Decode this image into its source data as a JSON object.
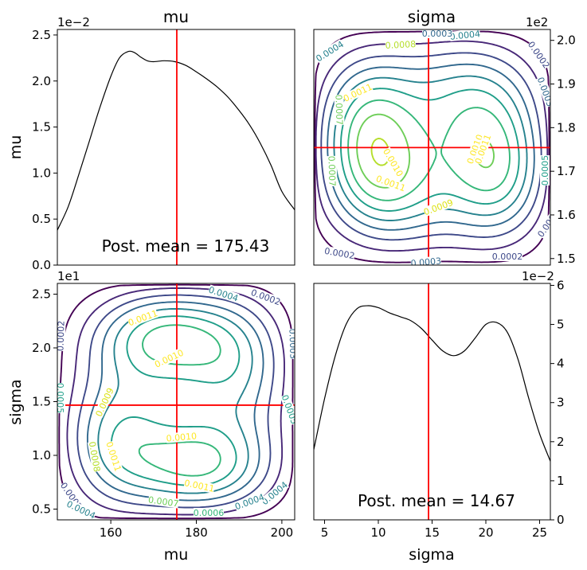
{
  "chart_data": [
    {
      "id": "mu_marginal",
      "type": "line",
      "title": "mu",
      "xlabel": "",
      "ylabel": "mu",
      "xlim": [
        147.5,
        203
      ],
      "ylim": [
        0,
        0.0256
      ],
      "y_scale_label": "1e−2",
      "yticks": [
        0,
        0.005,
        0.01,
        0.015,
        0.02,
        0.025
      ],
      "ytick_labels": [
        "0.0",
        "0.5",
        "1.0",
        "1.5",
        "2.0",
        "2.5"
      ],
      "x": [
        147.5,
        150,
        152.5,
        155,
        157.5,
        160,
        162,
        164,
        165.5,
        167,
        168.5,
        170,
        172.5,
        175,
        177.5,
        180,
        182.5,
        185,
        187.5,
        190,
        192.5,
        195,
        197.5,
        200,
        203
      ],
      "y": [
        0.0038,
        0.0063,
        0.0098,
        0.0135,
        0.0172,
        0.0205,
        0.0225,
        0.0232,
        0.0231,
        0.0226,
        0.0222,
        0.0221,
        0.0222,
        0.0221,
        0.0217,
        0.021,
        0.0202,
        0.0193,
        0.0182,
        0.0168,
        0.0152,
        0.0132,
        0.0108,
        0.008,
        0.006
      ],
      "line_color": "#000000",
      "vline": 175.43,
      "vline_color": "#ff0000",
      "annotation": "Post. mean = 175.43"
    },
    {
      "id": "joint_top_right",
      "type": "contour",
      "title": "sigma",
      "xlim": [
        4,
        26
      ],
      "ylim": [
        148.5,
        202.5
      ],
      "y_scale_label": "1e2",
      "yticks": [
        150,
        160,
        170,
        180,
        190,
        200
      ],
      "ytick_labels": [
        "1.5",
        "1.6",
        "1.7",
        "1.8",
        "1.9",
        "2.0"
      ],
      "crosshair": {
        "x": 14.67,
        "y": 175.43,
        "color": "#ff0000"
      },
      "levels": [
        0.0001,
        0.0002,
        0.0003,
        0.0004,
        0.0005,
        0.0006,
        0.0007,
        0.0008,
        0.0009,
        0.001,
        0.0011,
        0.0012
      ],
      "contour_labels": [
        "0.0004",
        "0.0004",
        "0.0002",
        "0.0008",
        "0.0011",
        "0.0010",
        "0.0011",
        "0.0010",
        "0.0011",
        "0.0009",
        "0.0002",
        "0.0003",
        "0.0002",
        "0.0007",
        "0.0003",
        "0.0005",
        "0.0007",
        "0.0003",
        "0.0002"
      ]
    },
    {
      "id": "joint_bottom_left",
      "type": "contour",
      "title": "",
      "xlabel": "mu",
      "ylabel": "sigma",
      "xlim": [
        147.5,
        203
      ],
      "ylim": [
        4,
        26
      ],
      "y_scale_label": "1e1",
      "xticks": [
        160,
        180,
        200
      ],
      "xtick_labels": [
        "160",
        "180",
        "200"
      ],
      "yticks": [
        5,
        10,
        15,
        20,
        25
      ],
      "ytick_labels": [
        "0.5",
        "1.0",
        "1.5",
        "2.0",
        "2.5"
      ],
      "crosshair": {
        "x": 175.43,
        "y": 14.67,
        "color": "#ff0000"
      },
      "levels": [
        0.0001,
        0.0002,
        0.0003,
        0.0004,
        0.0005,
        0.0006,
        0.0007,
        0.0008,
        0.0009,
        0.001,
        0.0011,
        0.0012
      ],
      "contour_labels": [
        "0.0004",
        "0.0002",
        "0.0011",
        "0.0010",
        "0.0002",
        "0.0009",
        "0.0010",
        "0.0011",
        "0.0008",
        "0.0011",
        "0.0002",
        "0.0007",
        "0.0006",
        "0.0004",
        "0.0004",
        "0.0005",
        "0.0003",
        "0.0004",
        "0.0005"
      ]
    },
    {
      "id": "sigma_marginal",
      "type": "line",
      "title": "",
      "xlabel": "sigma",
      "xlim": [
        4,
        26
      ],
      "ylim": [
        0,
        0.0605
      ],
      "y_scale_label": "1e−2",
      "xticks": [
        5,
        10,
        15,
        20,
        25
      ],
      "xtick_labels": [
        "5",
        "10",
        "15",
        "20",
        "25"
      ],
      "yticks": [
        0,
        0.01,
        0.02,
        0.03,
        0.04,
        0.05,
        0.06
      ],
      "ytick_labels": [
        "0",
        "1",
        "2",
        "3",
        "4",
        "5",
        "6"
      ],
      "x": [
        4,
        5,
        6,
        7,
        8,
        9,
        10,
        11,
        12,
        13,
        14,
        15,
        16,
        17,
        18,
        19,
        20,
        21,
        22,
        23,
        24,
        25,
        26
      ],
      "y": [
        0.018,
        0.031,
        0.042,
        0.05,
        0.054,
        0.0548,
        0.0543,
        0.053,
        0.052,
        0.051,
        0.049,
        0.046,
        0.0432,
        0.042,
        0.0432,
        0.0465,
        0.05,
        0.0505,
        0.048,
        0.041,
        0.031,
        0.022,
        0.015
      ],
      "line_color": "#000000",
      "vline": 14.67,
      "vline_color": "#ff0000",
      "annotation": "Post. mean = 14.67"
    }
  ]
}
